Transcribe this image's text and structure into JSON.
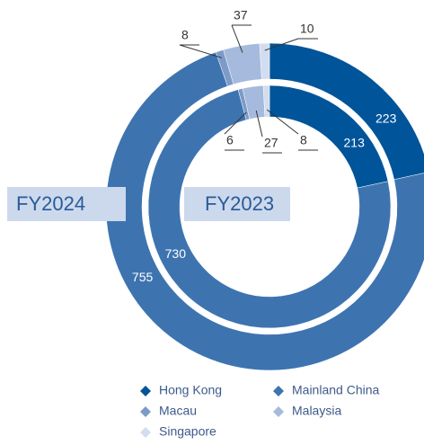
{
  "chart_data": {
    "type": "donut",
    "categories": [
      "Hong Kong",
      "Mainland China",
      "Macau",
      "Malaysia",
      "Singapore"
    ],
    "colors": [
      "#00549a",
      "#3d74b0",
      "#7d9bc9",
      "#a5badc",
      "#d2ddef"
    ],
    "series": [
      {
        "name": "FY2024",
        "values": [
          223,
          755,
          8,
          37,
          10
        ]
      },
      {
        "name": "FY2023",
        "values": [
          213,
          730,
          6,
          27,
          8
        ]
      }
    ]
  }
}
